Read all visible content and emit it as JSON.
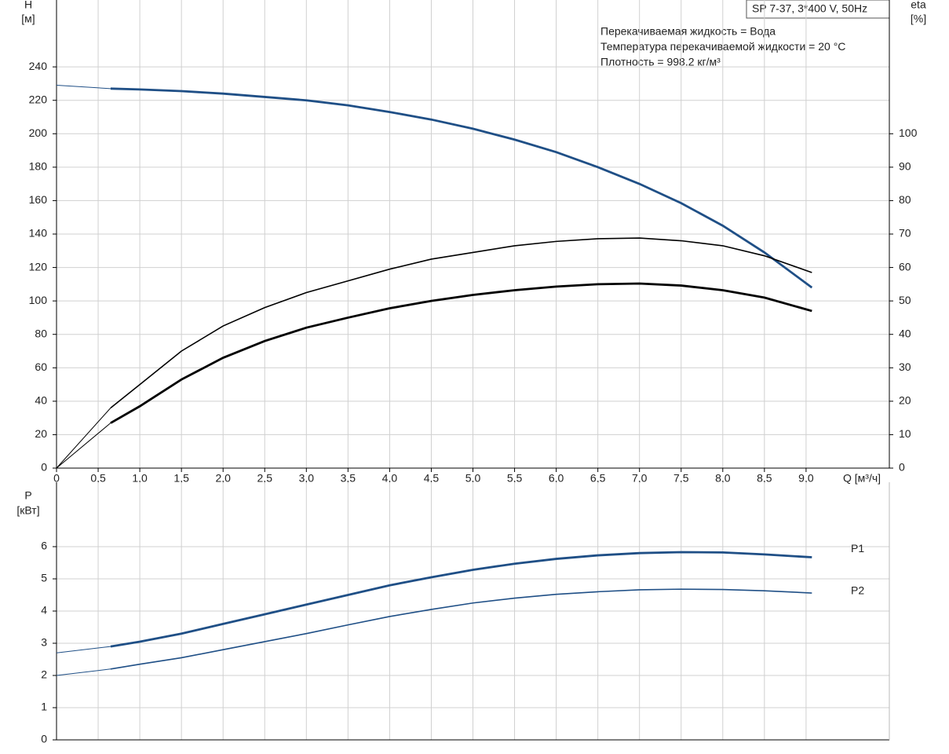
{
  "chart_data": [
    {
      "type": "line",
      "title": "SP 7-37, 3*400 V, 50Hz",
      "annotations": [
        "Перекачиваемая жидкость = Вода",
        "Температура перекачиваемой жидкости = 20 °C",
        "Плотность = 998.2 кг/м³"
      ],
      "xlabel": "Q [м³/ч]",
      "ylabel": "H",
      "yunit": "[м]",
      "y2label": "eta",
      "y2unit": "[%]",
      "x": [
        0,
        0.65,
        1,
        1.5,
        2,
        2.5,
        3,
        3.5,
        4,
        4.5,
        5,
        5.5,
        6,
        6.5,
        7,
        7.5,
        8,
        8.5,
        9.07
      ],
      "xlim": [
        0,
        10
      ],
      "xticks": [
        0,
        {
          "value": 0.5,
          "label": "0,5"
        },
        {
          "value": 1,
          "label": "1,0"
        },
        {
          "value": 1.5,
          "label": "1,5"
        },
        {
          "value": 2,
          "label": "2,0"
        },
        {
          "value": 2.5,
          "label": "2,5"
        },
        {
          "value": 3,
          "label": "3,0"
        },
        {
          "value": 3.5,
          "label": "3,5"
        },
        {
          "value": 4,
          "label": "4,0"
        },
        {
          "value": 4.5,
          "label": "4,5"
        },
        {
          "value": 5,
          "label": "5,0"
        },
        {
          "value": 5.5,
          "label": "5,5"
        },
        {
          "value": 6,
          "label": "6,0"
        },
        {
          "value": 6.5,
          "label": "6,5"
        },
        {
          "value": 7,
          "label": "7,0"
        },
        {
          "value": 7.5,
          "label": "7,5"
        },
        {
          "value": 8,
          "label": "8,0"
        },
        {
          "value": 8.5,
          "label": "8,5"
        },
        {
          "value": 9,
          "label": "9,0"
        }
      ],
      "ylim": [
        0,
        280
      ],
      "yticks": [
        0,
        20,
        40,
        60,
        80,
        100,
        120,
        140,
        160,
        180,
        200,
        220,
        240
      ],
      "y2lim": [
        0,
        140
      ],
      "y2ticks": [
        0,
        10,
        20,
        30,
        40,
        50,
        60,
        70,
        80,
        90,
        100
      ],
      "grid": true,
      "series": [
        {
          "color": "#1f4f86",
          "values": [
            229,
            227,
            226.5,
            225.5,
            224,
            222,
            220,
            217,
            213,
            208.5,
            203,
            196.5,
            189,
            180,
            170,
            158.5,
            145,
            129,
            108
          ]
        },
        {
          "color": "#000000",
          "axis": "y2",
          "values": [
            0,
            18,
            25,
            35,
            42.5,
            48,
            52.5,
            56,
            59.5,
            62.5,
            64.5,
            66.5,
            67.8,
            68.6,
            68.8,
            68,
            66.5,
            63.5,
            58.5
          ]
        },
        {
          "color": "#000000",
          "axis": "y2",
          "values": [
            0,
            13.5,
            18.5,
            26.5,
            33,
            38,
            42,
            45,
            47.8,
            50,
            51.8,
            53.2,
            54.3,
            55,
            55.2,
            54.6,
            53.2,
            51,
            47
          ]
        }
      ]
    },
    {
      "type": "line",
      "ylabel": "P",
      "yunit": "[кВт]",
      "x": [
        0,
        0.65,
        1,
        1.5,
        2,
        2.5,
        3,
        3.5,
        4,
        4.5,
        5,
        5.5,
        6,
        6.5,
        7,
        7.5,
        8,
        8.5,
        9.07
      ],
      "xlim": [
        0,
        10
      ],
      "ylim": [
        0,
        8
      ],
      "yticks": [
        0,
        1,
        2,
        3,
        4,
        5,
        6
      ],
      "grid": true,
      "series": [
        {
          "name": "P1",
          "color": "#1f4f86",
          "values": [
            2.7,
            2.9,
            3.05,
            3.3,
            3.6,
            3.9,
            4.2,
            4.5,
            4.8,
            5.05,
            5.28,
            5.47,
            5.62,
            5.73,
            5.8,
            5.83,
            5.82,
            5.76,
            5.67
          ]
        },
        {
          "name": "P2",
          "color": "#1f4f86",
          "values": [
            2.0,
            2.2,
            2.35,
            2.55,
            2.8,
            3.05,
            3.3,
            3.57,
            3.83,
            4.05,
            4.25,
            4.4,
            4.52,
            4.6,
            4.66,
            4.68,
            4.67,
            4.63,
            4.56
          ]
        }
      ]
    }
  ]
}
